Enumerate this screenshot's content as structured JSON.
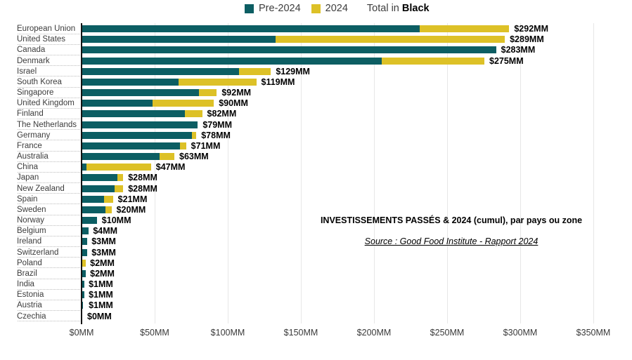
{
  "legend": {
    "pre_label": "Pre-2024",
    "y2024_label": "2024",
    "total_prefix": "Total in ",
    "total_bold": "Black"
  },
  "colors": {
    "pre2024": "#0c5e63",
    "y2024": "#ddc127",
    "axis": "#141414",
    "gridline": "#e7e7e7"
  },
  "annotation": {
    "title": "INVESTISSEMENTS PASSÉS & 2024 (cumul), par pays ou zone",
    "source": "Source : Good Food Institute - Rapport 2024"
  },
  "chart_data": {
    "type": "bar",
    "orientation": "horizontal-stacked",
    "title": "INVESTISSEMENTS PASSÉS & 2024 (cumul), par pays ou zone",
    "source": "Source : Good Food Institute - Rapport 2024",
    "unit": "MM (millions USD)",
    "xlim": [
      0,
      350
    ],
    "x_tick_values": [
      0,
      50,
      100,
      150,
      200,
      250,
      300,
      350
    ],
    "x_tick_labels": [
      "$0MM",
      "$50MM",
      "$100MM",
      "$150MM",
      "$200MM",
      "$250MM",
      "$300MM",
      "$350MM"
    ],
    "grid": "vertical",
    "legend_position": "top",
    "categories": [
      "European Union",
      "United States",
      "Canada",
      "Denmark",
      "Israel",
      "South Korea",
      "Singapore",
      "United Kingdom",
      "Finland",
      "The Netherlands",
      "Germany",
      "France",
      "Australia",
      "China",
      "Japan",
      "New Zealand",
      "Spain",
      "Sweden",
      "Norway",
      "Belgium",
      "Ireland",
      "Switzerland",
      "Poland",
      "Brazil",
      "India",
      "Estonia",
      "Austria",
      "Czechia"
    ],
    "series": [
      {
        "name": "Pre-2024",
        "color": "#0c5e63",
        "values": [
          231,
          132,
          283,
          205,
          107,
          66,
          80,
          48,
          70,
          79,
          75,
          67,
          53,
          3,
          24,
          22,
          15,
          16,
          10,
          4.3,
          3.6,
          3.2,
          0,
          2.2,
          1.3,
          1.3,
          0.6,
          0
        ]
      },
      {
        "name": "2024",
        "color": "#ddc127",
        "values": [
          61,
          157,
          0,
          70,
          22,
          53,
          12,
          42,
          12,
          0,
          3,
          4,
          10,
          44,
          4,
          6,
          6,
          4,
          0,
          0,
          0,
          0,
          2.2,
          0,
          0,
          0,
          0,
          0
        ]
      }
    ],
    "totals": [
      292,
      289,
      283,
      275,
      129,
      119,
      92,
      90,
      82,
      79,
      78,
      71,
      63,
      47,
      28,
      28,
      21,
      20,
      10,
      4,
      3,
      3,
      2,
      2,
      1,
      1,
      1,
      0
    ],
    "total_labels": [
      "$292MM",
      "$289MM",
      "$283MM",
      "$275MM",
      "$129MM",
      "$119MM",
      "$92MM",
      "$90MM",
      "$82MM",
      "$79MM",
      "$78MM",
      "$71MM",
      "$63MM",
      "$47MM",
      "$28MM",
      "$28MM",
      "$21MM",
      "$20MM",
      "$10MM",
      "$4MM",
      "$3MM",
      "$3MM",
      "$2MM",
      "$2MM",
      "$1MM",
      "$1MM",
      "$1MM",
      "$0MM"
    ]
  }
}
